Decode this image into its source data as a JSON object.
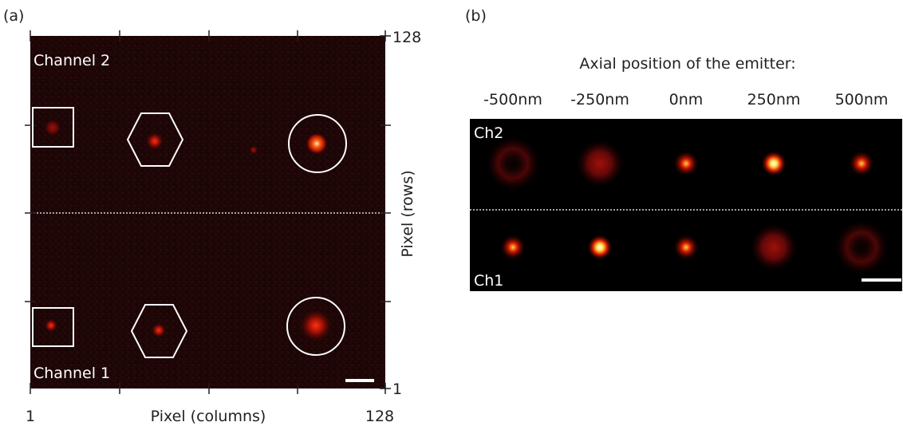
{
  "panel_a": {
    "label": "(a)",
    "channel_top": "Channel 2",
    "channel_bottom": "Channel 1",
    "y_axis": {
      "label": "Pixel (rows)",
      "top": 128,
      "bottom": 1
    },
    "x_axis": {
      "label": "Pixel (columns)",
      "left": 1,
      "right": 128
    }
  },
  "panel_b": {
    "label": "(b)",
    "heading": "Axial position of the emitter:",
    "positions": [
      "-500nm",
      "-250nm",
      "0nm",
      "250nm",
      "500nm"
    ],
    "channel_top": "Ch2",
    "channel_bottom": "Ch1"
  }
}
